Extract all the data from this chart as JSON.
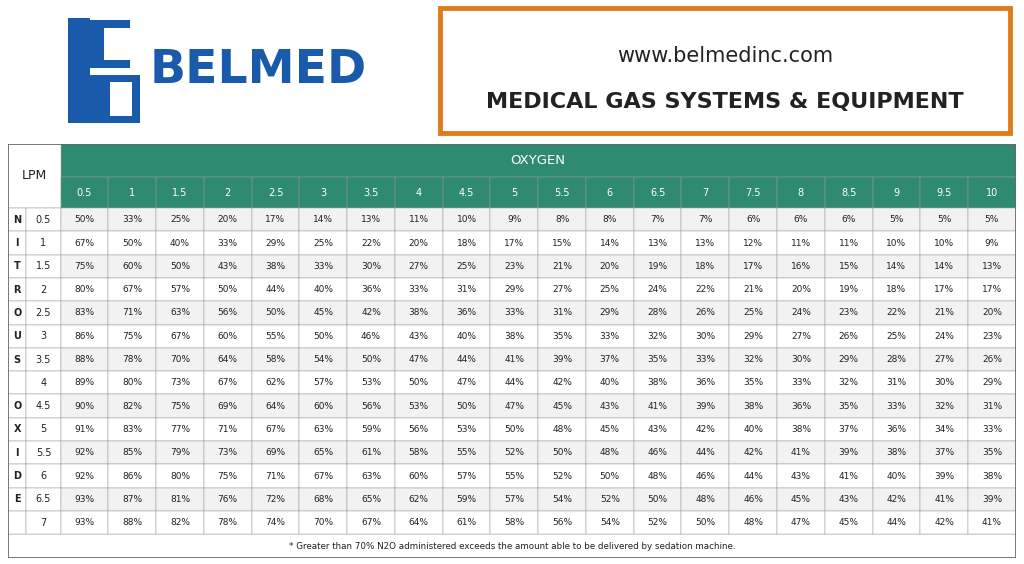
{
  "oxygen_cols": [
    "0.5",
    "1",
    "1.5",
    "2",
    "2.5",
    "3",
    "3.5",
    "4",
    "4.5",
    "5",
    "5.5",
    "6",
    "6.5",
    "7",
    "7.5",
    "8",
    "8.5",
    "9",
    "9.5",
    "10"
  ],
  "nitrous_rows": [
    "0.5",
    "1",
    "1.5",
    "2",
    "2.5",
    "3",
    "3.5",
    "4",
    "4.5",
    "5",
    "5.5",
    "6",
    "6.5",
    "7"
  ],
  "table_data": [
    [
      "50%",
      "33%",
      "25%",
      "20%",
      "17%",
      "14%",
      "13%",
      "11%",
      "10%",
      "9%",
      "8%",
      "8%",
      "7%",
      "7%",
      "6%",
      "6%",
      "6%",
      "5%",
      "5%",
      "5%"
    ],
    [
      "67%",
      "50%",
      "40%",
      "33%",
      "29%",
      "25%",
      "22%",
      "20%",
      "18%",
      "17%",
      "15%",
      "14%",
      "13%",
      "13%",
      "12%",
      "11%",
      "11%",
      "10%",
      "10%",
      "9%"
    ],
    [
      "75%",
      "60%",
      "50%",
      "43%",
      "38%",
      "33%",
      "30%",
      "27%",
      "25%",
      "23%",
      "21%",
      "20%",
      "19%",
      "18%",
      "17%",
      "16%",
      "15%",
      "14%",
      "14%",
      "13%"
    ],
    [
      "80%",
      "67%",
      "57%",
      "50%",
      "44%",
      "40%",
      "36%",
      "33%",
      "31%",
      "29%",
      "27%",
      "25%",
      "24%",
      "22%",
      "21%",
      "20%",
      "19%",
      "18%",
      "17%",
      "17%"
    ],
    [
      "83%",
      "71%",
      "63%",
      "56%",
      "50%",
      "45%",
      "42%",
      "38%",
      "36%",
      "33%",
      "31%",
      "29%",
      "28%",
      "26%",
      "25%",
      "24%",
      "23%",
      "22%",
      "21%",
      "20%"
    ],
    [
      "86%",
      "75%",
      "67%",
      "60%",
      "55%",
      "50%",
      "46%",
      "43%",
      "40%",
      "38%",
      "35%",
      "33%",
      "32%",
      "30%",
      "29%",
      "27%",
      "26%",
      "25%",
      "24%",
      "23%"
    ],
    [
      "88%",
      "78%",
      "70%",
      "64%",
      "58%",
      "54%",
      "50%",
      "47%",
      "44%",
      "41%",
      "39%",
      "37%",
      "35%",
      "33%",
      "32%",
      "30%",
      "29%",
      "28%",
      "27%",
      "26%"
    ],
    [
      "89%",
      "80%",
      "73%",
      "67%",
      "62%",
      "57%",
      "53%",
      "50%",
      "47%",
      "44%",
      "42%",
      "40%",
      "38%",
      "36%",
      "35%",
      "33%",
      "32%",
      "31%",
      "30%",
      "29%"
    ],
    [
      "90%",
      "82%",
      "75%",
      "69%",
      "64%",
      "60%",
      "56%",
      "53%",
      "50%",
      "47%",
      "45%",
      "43%",
      "41%",
      "39%",
      "38%",
      "36%",
      "35%",
      "33%",
      "32%",
      "31%"
    ],
    [
      "91%",
      "83%",
      "77%",
      "71%",
      "67%",
      "63%",
      "59%",
      "56%",
      "53%",
      "50%",
      "48%",
      "45%",
      "43%",
      "42%",
      "40%",
      "38%",
      "37%",
      "36%",
      "34%",
      "33%"
    ],
    [
      "92%",
      "85%",
      "79%",
      "73%",
      "69%",
      "65%",
      "61%",
      "58%",
      "55%",
      "52%",
      "50%",
      "48%",
      "46%",
      "44%",
      "42%",
      "41%",
      "39%",
      "38%",
      "37%",
      "35%"
    ],
    [
      "92%",
      "86%",
      "80%",
      "75%",
      "71%",
      "67%",
      "63%",
      "60%",
      "57%",
      "55%",
      "52%",
      "50%",
      "48%",
      "46%",
      "44%",
      "43%",
      "41%",
      "40%",
      "39%",
      "38%"
    ],
    [
      "93%",
      "87%",
      "81%",
      "76%",
      "72%",
      "68%",
      "65%",
      "62%",
      "59%",
      "57%",
      "54%",
      "52%",
      "50%",
      "48%",
      "46%",
      "45%",
      "43%",
      "42%",
      "41%",
      "39%"
    ],
    [
      "93%",
      "88%",
      "82%",
      "78%",
      "74%",
      "70%",
      "67%",
      "64%",
      "61%",
      "58%",
      "56%",
      "54%",
      "52%",
      "50%",
      "48%",
      "47%",
      "45%",
      "44%",
      "42%",
      "41%"
    ]
  ],
  "teal_color": "#2e8b72",
  "orange_color": "#e07b1a",
  "blue_color": "#1a5aaa",
  "white": "#ffffff",
  "light_gray": "#f2f2f2",
  "dark_text": "#222222",
  "border_color": "#999999",
  "lpm_label": "LPM",
  "oxygen_label": "OXYGEN",
  "nitrous_label_letters": [
    "N",
    "I",
    "T",
    "R",
    "O",
    "U",
    "S",
    "",
    "O",
    "X",
    "I",
    "D",
    "E",
    ""
  ],
  "website": "www.belmedinc.com",
  "tagline": "MEDICAL GAS SYSTEMS & EQUIPMENT",
  "footnote": "* Greater than 70% N2O administered exceeds the amount able to be delivered by sedation machine."
}
